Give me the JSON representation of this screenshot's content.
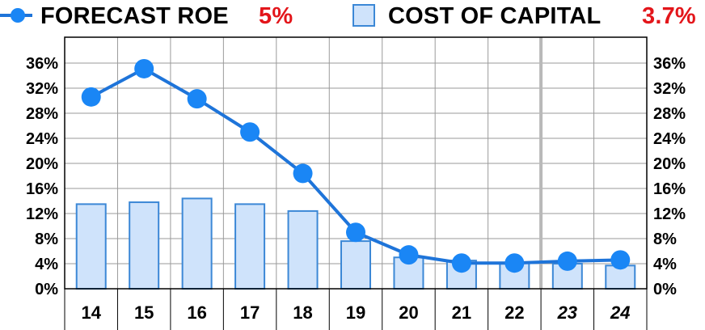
{
  "legend": {
    "roe_label": "FORECAST ROE",
    "roe_value": "5%",
    "coc_label": "COST OF CAPITAL",
    "coc_value": "3.7%"
  },
  "colors": {
    "line": "#1e74d9",
    "marker": "#1a86f5",
    "bar_fill": "#cfe3fb",
    "bar_stroke": "#3c88d6",
    "value_text": "#e3161b",
    "grid": "#9a9a9a"
  },
  "chart_data": {
    "type": "bar+line",
    "categories": [
      "14",
      "15",
      "16",
      "17",
      "18",
      "19",
      "20",
      "21",
      "22",
      "23",
      "24"
    ],
    "italic_categories": [
      "23",
      "24"
    ],
    "ylim": [
      0,
      36
    ],
    "yticks": [
      "0%",
      "4%",
      "8%",
      "12%",
      "16%",
      "20%",
      "24%",
      "28%",
      "32%",
      "36%"
    ],
    "series": [
      {
        "name": "COST OF CAPITAL",
        "type": "bar",
        "values": [
          13.5,
          13.8,
          14.4,
          13.5,
          12.4,
          7.6,
          5.0,
          4.5,
          4.2,
          4.0,
          3.7
        ]
      },
      {
        "name": "FORECAST ROE",
        "type": "line",
        "values": [
          30.6,
          35.1,
          30.3,
          25.0,
          18.4,
          9.0,
          5.4,
          4.1,
          4.1,
          4.4,
          4.6
        ]
      }
    ],
    "grid": true,
    "legend_position": "top"
  }
}
